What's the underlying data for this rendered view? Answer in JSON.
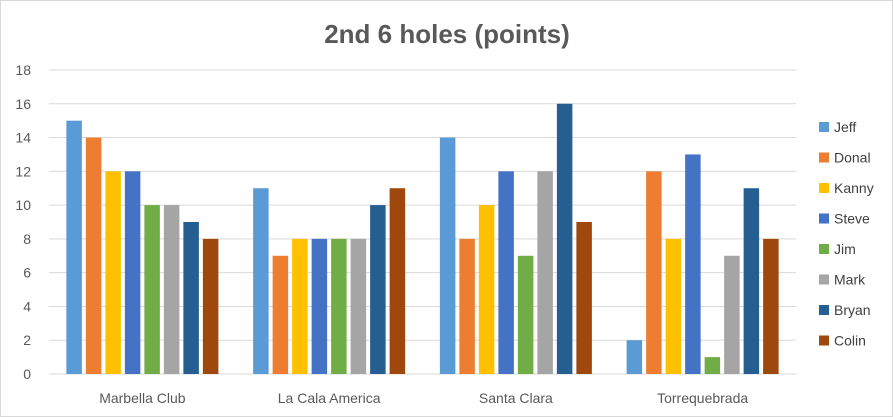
{
  "chart_data": {
    "type": "bar",
    "title": "2nd 6 holes (points)",
    "xlabel": "",
    "ylabel": "",
    "categories": [
      "Marbella Club",
      "La Cala America",
      "Santa Clara",
      "Torrequebrada"
    ],
    "ylim": [
      0,
      18
    ],
    "yticks": [
      0,
      2,
      4,
      6,
      8,
      10,
      12,
      14,
      16,
      18
    ],
    "grid": true,
    "legend_position": "right",
    "series": [
      {
        "name": "Jeff",
        "color": "#5B9BD5",
        "values": [
          15,
          11,
          14,
          2
        ]
      },
      {
        "name": "Donal",
        "color": "#ED7D31",
        "values": [
          14,
          7,
          8,
          12
        ]
      },
      {
        "name": "Kanny",
        "color": "#FFC000",
        "values": [
          12,
          8,
          10,
          8
        ]
      },
      {
        "name": "Steve",
        "color": "#4472C4",
        "values": [
          12,
          8,
          12,
          13
        ]
      },
      {
        "name": "Jim",
        "color": "#70AD47",
        "values": [
          10,
          8,
          7,
          1
        ]
      },
      {
        "name": "Mark",
        "color": "#A5A5A5",
        "values": [
          10,
          8,
          12,
          7
        ]
      },
      {
        "name": "Bryan",
        "color": "#255E91",
        "values": [
          9,
          10,
          16,
          11
        ]
      },
      {
        "name": "Colin",
        "color": "#9E480E",
        "values": [
          8,
          11,
          9,
          8
        ]
      }
    ]
  }
}
